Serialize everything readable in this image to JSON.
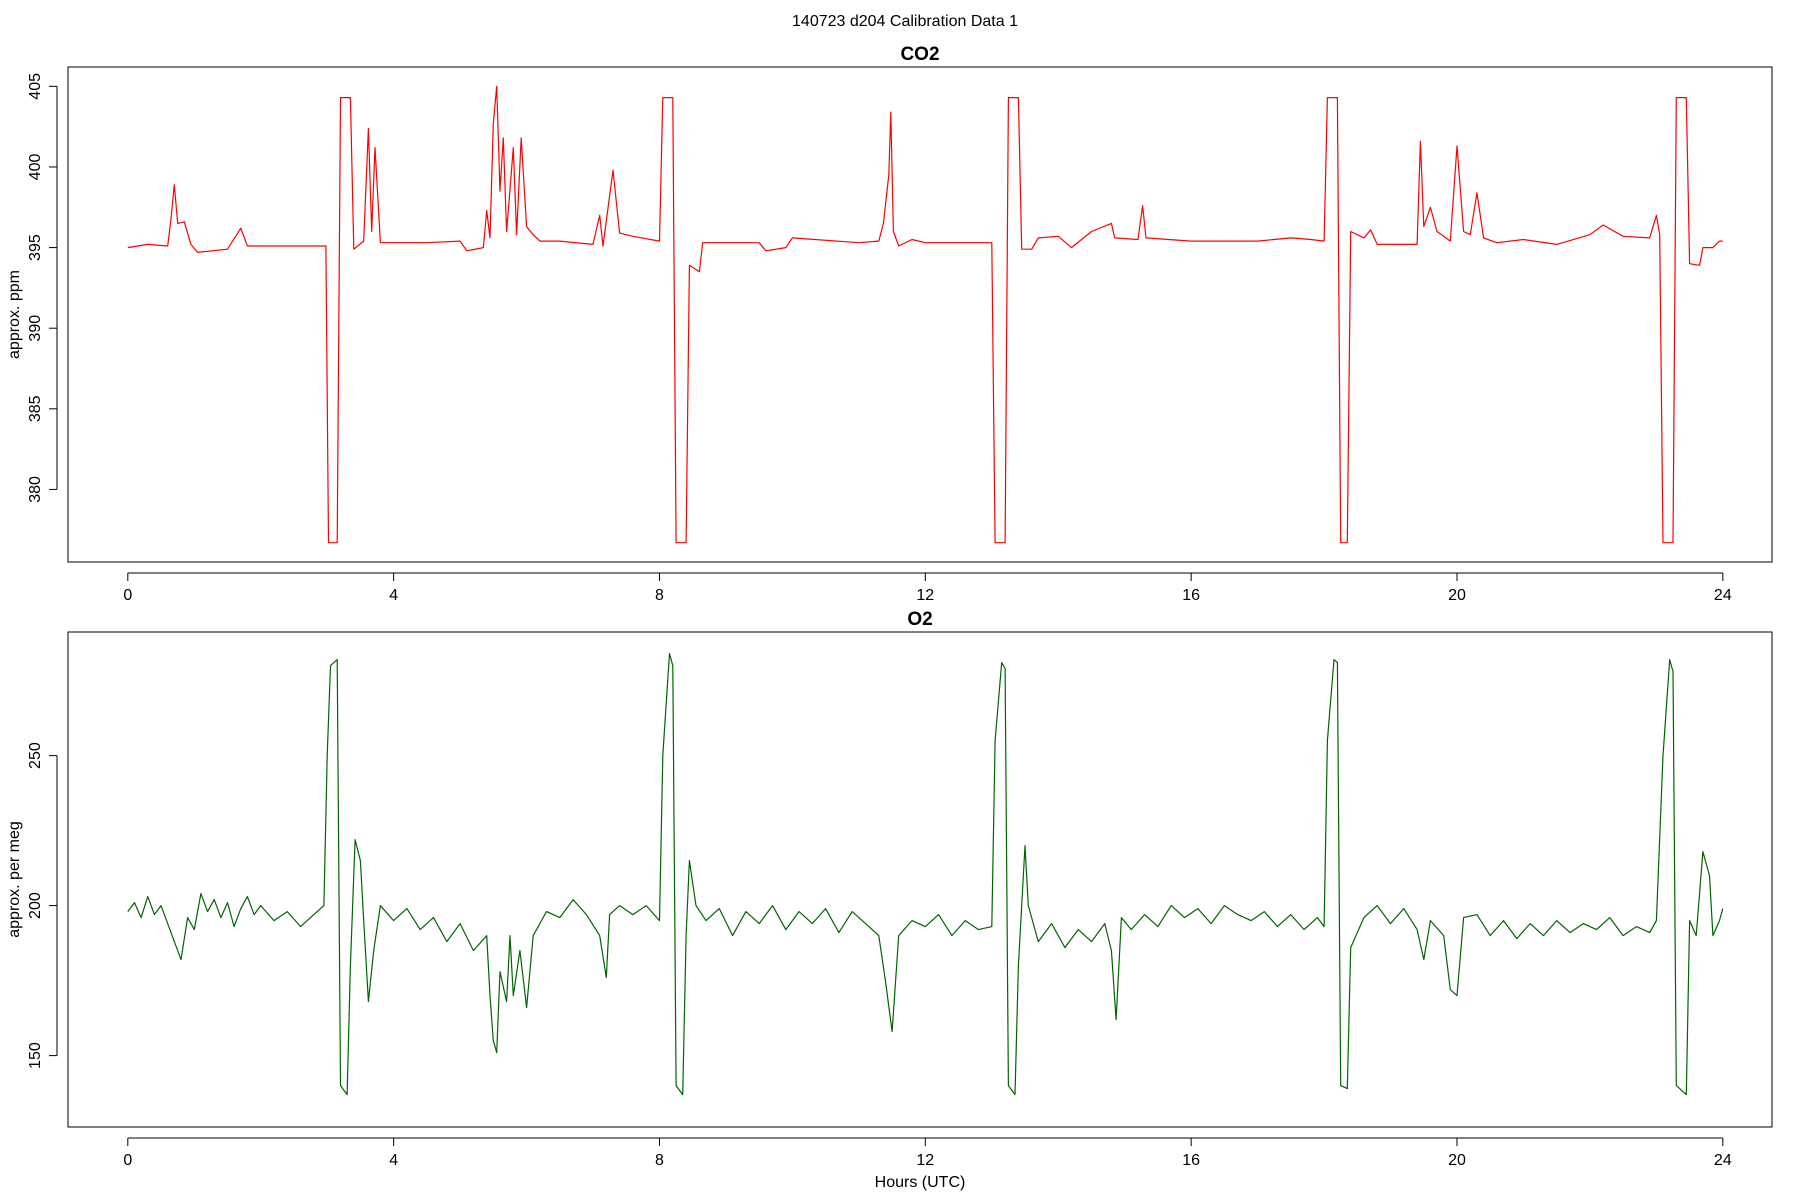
{
  "title": "140723   d204   Calibration Data 1",
  "chart_data": [
    {
      "type": "line",
      "title": "CO2",
      "ylabel": "approx. ppm",
      "color": "#ff0000",
      "xlim": [
        -0.9,
        24.74
      ],
      "xticks": [
        0,
        4,
        8,
        12,
        16,
        20,
        24
      ],
      "ylim": [
        375.5,
        406.2
      ],
      "yticks": [
        380,
        385,
        390,
        395,
        400,
        405
      ],
      "x": [
        0,
        0.3,
        0.6,
        0.65,
        0.7,
        0.75,
        0.85,
        0.95,
        1.05,
        1.5,
        1.7,
        1.8,
        2.5,
        2.98,
        3.02,
        3.15,
        3.2,
        3.35,
        3.4,
        3.55,
        3.62,
        3.67,
        3.72,
        3.8,
        4.5,
        5.0,
        5.1,
        5.35,
        5.4,
        5.45,
        5.5,
        5.55,
        5.6,
        5.65,
        5.7,
        5.8,
        5.85,
        5.92,
        6.0,
        6.1,
        6.2,
        6.5,
        7.0,
        7.1,
        7.15,
        7.3,
        7.4,
        7.6,
        8.0,
        8.05,
        8.2,
        8.25,
        8.4,
        8.45,
        8.6,
        8.65,
        9.5,
        9.6,
        9.9,
        10.0,
        11.0,
        11.3,
        11.37,
        11.45,
        11.48,
        11.52,
        11.6,
        11.8,
        12.0,
        13.0,
        13.05,
        13.2,
        13.25,
        13.4,
        13.45,
        13.6,
        13.7,
        14.0,
        14.2,
        14.5,
        14.8,
        14.85,
        15.2,
        15.27,
        15.32,
        16.0,
        17.0,
        17.5,
        17.8,
        18.0,
        18.05,
        18.2,
        18.25,
        18.35,
        18.4,
        18.6,
        18.7,
        18.8,
        19.4,
        19.45,
        19.5,
        19.6,
        19.7,
        19.8,
        19.9,
        20.0,
        20.1,
        20.2,
        20.3,
        20.4,
        20.6,
        21.0,
        21.5,
        22.0,
        22.2,
        22.5,
        22.9,
        23.0,
        23.05,
        23.1,
        23.25,
        23.3,
        23.45,
        23.5,
        23.65,
        23.7,
        23.85,
        23.95,
        24.0
      ],
      "values": [
        395.0,
        395.2,
        395.1,
        396.8,
        398.9,
        396.5,
        396.6,
        395.2,
        394.7,
        394.9,
        396.2,
        395.1,
        395.1,
        395.1,
        376.7,
        376.7,
        404.3,
        404.3,
        394.9,
        395.4,
        402.4,
        396.0,
        401.2,
        395.3,
        395.3,
        395.4,
        394.8,
        395.0,
        397.3,
        395.6,
        402.7,
        405.0,
        398.5,
        401.8,
        396.0,
        401.2,
        395.8,
        401.8,
        396.3,
        395.8,
        395.4,
        395.4,
        395.2,
        397.0,
        395.1,
        399.8,
        395.9,
        395.7,
        395.4,
        404.3,
        404.3,
        376.7,
        376.7,
        393.9,
        393.5,
        395.3,
        395.3,
        394.8,
        395.0,
        395.6,
        395.3,
        395.4,
        396.5,
        399.5,
        403.4,
        396.0,
        395.1,
        395.5,
        395.3,
        395.3,
        376.7,
        376.7,
        404.3,
        404.3,
        394.9,
        394.9,
        395.6,
        395.7,
        395.0,
        396.0,
        396.5,
        395.6,
        395.5,
        397.6,
        395.6,
        395.4,
        395.4,
        395.6,
        395.5,
        395.4,
        404.3,
        404.3,
        376.7,
        376.7,
        396.0,
        395.6,
        396.1,
        395.2,
        395.2,
        401.6,
        396.3,
        397.5,
        396.0,
        395.7,
        395.4,
        401.3,
        396.0,
        395.8,
        398.4,
        395.6,
        395.3,
        395.5,
        395.2,
        395.8,
        396.4,
        395.7,
        395.6,
        397.0,
        395.8,
        376.7,
        376.7,
        404.3,
        404.3,
        394.0,
        393.9,
        395.0,
        395.0,
        395.4,
        395.4
      ]
    },
    {
      "type": "line",
      "title": "O2",
      "ylabel": "approx. per meg",
      "xlabel": "Hours (UTC)",
      "color": "#006400",
      "xlim": [
        -0.9,
        24.74
      ],
      "xticks": [
        0,
        4,
        8,
        12,
        16,
        20,
        24
      ],
      "ylim": [
        126.2,
        291.2
      ],
      "yticks": [
        150,
        200,
        250
      ],
      "x": [
        0,
        0.1,
        0.2,
        0.3,
        0.4,
        0.5,
        0.6,
        0.7,
        0.8,
        0.9,
        1.0,
        1.1,
        1.2,
        1.3,
        1.4,
        1.5,
        1.6,
        1.7,
        1.8,
        1.9,
        2.0,
        2.2,
        2.4,
        2.6,
        2.8,
        2.95,
        3.0,
        3.05,
        3.15,
        3.2,
        3.3,
        3.35,
        3.42,
        3.5,
        3.55,
        3.62,
        3.7,
        3.8,
        4.0,
        4.2,
        4.4,
        4.6,
        4.8,
        5.0,
        5.2,
        5.4,
        5.45,
        5.5,
        5.55,
        5.6,
        5.7,
        5.75,
        5.8,
        5.9,
        6.0,
        6.1,
        6.3,
        6.5,
        6.7,
        6.9,
        7.1,
        7.2,
        7.25,
        7.4,
        7.6,
        7.8,
        8.0,
        8.05,
        8.15,
        8.2,
        8.25,
        8.35,
        8.4,
        8.45,
        8.55,
        8.7,
        8.9,
        9.1,
        9.3,
        9.5,
        9.7,
        9.9,
        10.1,
        10.3,
        10.5,
        10.7,
        10.9,
        11.1,
        11.3,
        11.4,
        11.5,
        11.6,
        11.8,
        12.0,
        12.2,
        12.4,
        12.6,
        12.8,
        13.0,
        13.05,
        13.15,
        13.2,
        13.25,
        13.35,
        13.4,
        13.5,
        13.55,
        13.7,
        13.9,
        14.1,
        14.3,
        14.5,
        14.7,
        14.8,
        14.87,
        14.95,
        15.1,
        15.3,
        15.5,
        15.7,
        15.9,
        16.1,
        16.3,
        16.5,
        16.7,
        16.9,
        17.1,
        17.3,
        17.5,
        17.7,
        17.9,
        18.0,
        18.05,
        18.15,
        18.2,
        18.25,
        18.35,
        18.4,
        18.6,
        18.8,
        19.0,
        19.2,
        19.4,
        19.5,
        19.6,
        19.8,
        19.9,
        20.0,
        20.1,
        20.3,
        20.5,
        20.7,
        20.9,
        21.1,
        21.3,
        21.5,
        21.7,
        21.9,
        22.1,
        22.3,
        22.5,
        22.7,
        22.9,
        23.0,
        23.1,
        23.2,
        23.25,
        23.3,
        23.45,
        23.5,
        23.6,
        23.7,
        23.8,
        23.85,
        23.95,
        24.0
      ],
      "values": [
        198,
        201,
        196,
        203,
        197,
        200,
        194,
        188,
        182,
        196,
        192,
        204,
        198,
        202,
        196,
        201,
        193,
        199,
        203,
        197,
        200,
        195,
        198,
        193,
        197,
        200,
        250,
        280,
        282,
        140,
        137,
        180,
        222,
        215,
        195,
        168,
        185,
        200,
        195,
        199,
        192,
        196,
        188,
        194,
        185,
        190,
        170,
        155,
        151,
        178,
        168,
        190,
        170,
        185,
        166,
        190,
        198,
        196,
        202,
        197,
        190,
        176,
        197,
        200,
        197,
        200,
        195,
        250,
        284,
        280,
        140,
        137,
        190,
        215,
        200,
        195,
        199,
        190,
        198,
        194,
        200,
        192,
        198,
        194,
        199,
        191,
        198,
        194,
        190,
        175,
        158,
        190,
        195,
        193,
        197,
        190,
        195,
        192,
        193,
        255,
        281,
        279,
        140,
        137,
        180,
        220,
        200,
        188,
        194,
        186,
        192,
        188,
        194,
        185,
        162,
        196,
        192,
        197,
        193,
        200,
        196,
        199,
        194,
        200,
        197,
        195,
        198,
        193,
        197,
        192,
        196,
        193,
        255,
        282,
        281,
        140,
        139,
        186,
        196,
        200,
        194,
        199,
        192,
        182,
        195,
        190,
        172,
        170,
        196,
        197,
        190,
        195,
        189,
        194,
        190,
        195,
        191,
        194,
        192,
        196,
        190,
        193,
        191,
        195,
        250,
        282,
        278,
        140,
        137,
        195,
        190,
        218,
        210,
        190,
        195,
        199
      ]
    }
  ]
}
